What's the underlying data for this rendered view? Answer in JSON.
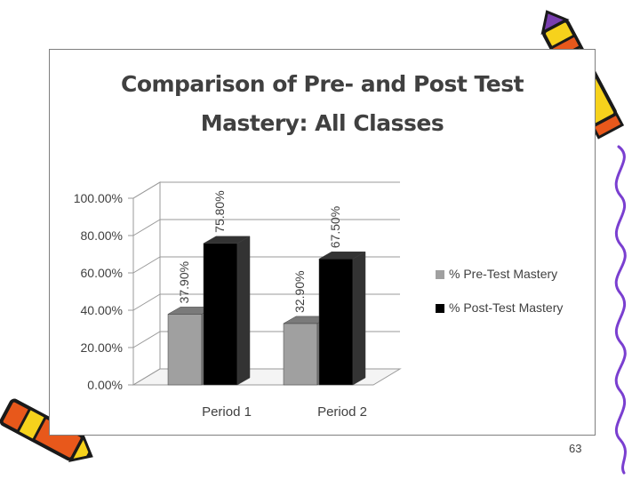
{
  "slide": {
    "page_number": "63"
  },
  "chart_data": {
    "type": "bar",
    "title_lines": [
      "Comparison of Pre- and Post Test",
      "Mastery: All Classes"
    ],
    "categories": [
      "Period 1",
      "Period 2"
    ],
    "series": [
      {
        "name": "% Pre-Test Mastery",
        "values": [
          37.9,
          32.9
        ],
        "labels": [
          "37.90%",
          "32.90%"
        ],
        "color": "#a0a0a0",
        "top_color": "#7a7a7a"
      },
      {
        "name": "% Post-Test Mastery",
        "values": [
          75.8,
          67.5
        ],
        "labels": [
          "75.80%",
          "67.50%"
        ],
        "color": "#000000",
        "top_color": "#333333"
      }
    ],
    "ylim": [
      0,
      100
    ],
    "y_ticks": [
      0,
      20,
      40,
      60,
      80,
      100
    ],
    "y_tick_labels": [
      "0.00%",
      "20.00%",
      "40.00%",
      "60.00%",
      "80.00%",
      "100.00%"
    ],
    "grid": true,
    "three_d": true,
    "legend_position": "right",
    "xlabel": "",
    "ylabel": ""
  },
  "decorations": {
    "top_right_icon": "pencil-icon",
    "bottom_left_icon": "pencil-icon",
    "right_edge": "squiggle-line",
    "pencil_colors": {
      "body": "#f6d21c",
      "stripe": "#e8581b",
      "tip": "#7a3fb0",
      "outline": "#1a1a1a"
    }
  }
}
